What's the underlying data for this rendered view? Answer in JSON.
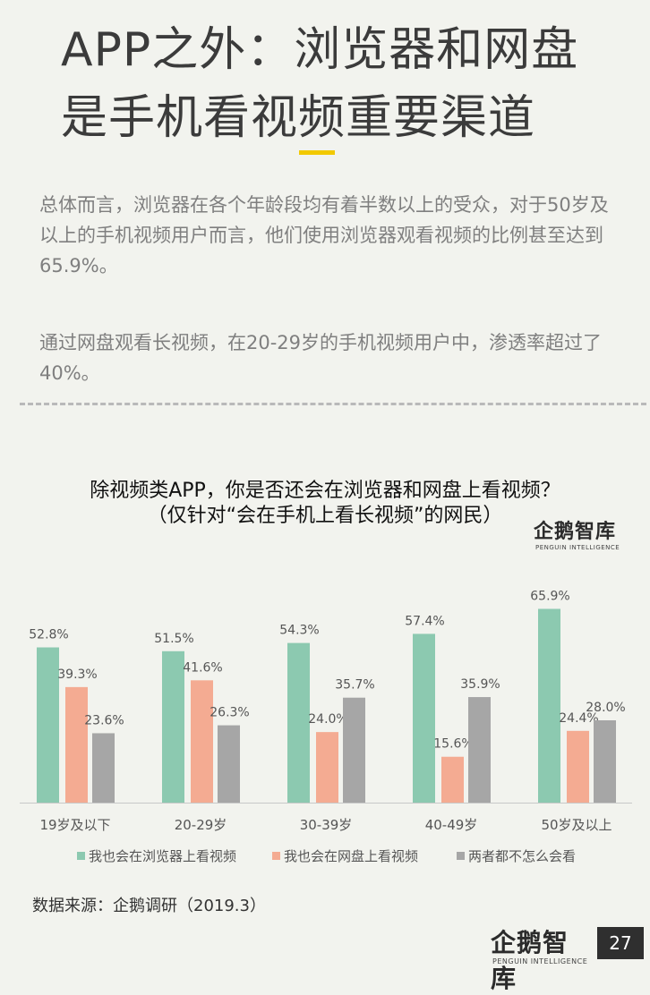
{
  "header": {
    "title_line1": "APP之外：浏览器和网盘",
    "title_line2": "是手机看视频重要渠道"
  },
  "body": {
    "paragraph1": "总体而言，浏览器在各个年龄段均有着半数以上的受众，对于50岁及以上的手机视频用户而言，他们使用浏览器观看视频的比例甚至达到65.9%。",
    "paragraph2": "通过网盘观看长视频，在20-29岁的手机视频用户中，渗透率超过了40%。"
  },
  "brand": {
    "logo_text": "企鹅智库",
    "logo_subtext": "PENGUIN INTELLIGENCE"
  },
  "chart_data": {
    "type": "bar",
    "title": "除视频类APP，你是否还会在浏览器和网盘上看视频？",
    "subtitle": "（仅针对“会在手机上看长视频”的网民）",
    "categories": [
      "19岁及以下",
      "20-29岁",
      "30-39岁",
      "40-49岁",
      "50岁及以上"
    ],
    "series": [
      {
        "name": "我也会在浏览器上看视频",
        "color": "#8cc9b0",
        "values": [
          52.8,
          51.5,
          54.3,
          57.4,
          65.9
        ],
        "labels": [
          "52.8%",
          "51.5%",
          "54.3%",
          "57.4%",
          "65.9%"
        ]
      },
      {
        "name": "我也会在网盘上看视频",
        "color": "#f4ab92",
        "values": [
          39.3,
          41.6,
          24.0,
          15.6,
          24.4
        ],
        "labels": [
          "39.3%",
          "41.6%",
          "24.0%",
          "15.6%",
          "24.4%"
        ]
      },
      {
        "name": "两者都不怎么会看",
        "color": "#a6a6a6",
        "values": [
          23.6,
          26.3,
          35.7,
          35.9,
          28.0
        ],
        "labels": [
          "23.6%",
          "26.3%",
          "35.7%",
          "35.9%",
          "28.0%"
        ]
      }
    ],
    "ylim": [
      0,
      70
    ],
    "grid": false,
    "legend_position": "bottom"
  },
  "footer": {
    "source": "数据来源：企鹅调研（2019.3）",
    "page_number": "27"
  }
}
